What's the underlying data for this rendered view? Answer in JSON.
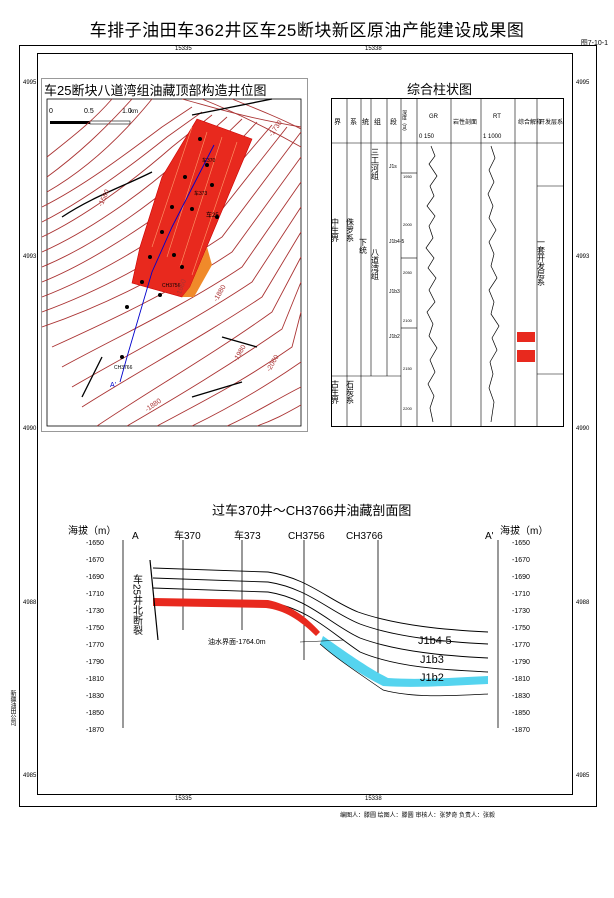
{
  "title": "车排子油田车362井区车25断块新区原油产能建设成果图",
  "figure_no": "图7-10-1",
  "grid": {
    "top_x": [
      "15335",
      "15338"
    ],
    "bottom_x": [
      "15335",
      "15338"
    ],
    "left_y": [
      "4995",
      "4993",
      "4990",
      "4988",
      "4985"
    ],
    "right_y": [
      "4995",
      "4993",
      "4990",
      "4988",
      "4985"
    ]
  },
  "map_panel": {
    "title": "车25断块八道湾组油藏顶部构造井位图",
    "scale_labels": [
      "0",
      "0.5",
      "1.0",
      "km"
    ],
    "wells": [
      "车370",
      "车373",
      "车25",
      "CH3756",
      "CH3766"
    ],
    "contours": [
      "-1580",
      "-1730",
      "-1660",
      "-1880",
      "-1980",
      "-2060",
      "-1880"
    ],
    "section_line_label": "A'"
  },
  "column_panel": {
    "title": "综合柱状图",
    "headers": [
      "界",
      "系",
      "统",
      "组",
      "段",
      "深度（m）",
      "GR",
      "岩性剖面",
      "RT",
      "综合解释",
      "开发层系"
    ],
    "gr_range": "0    150",
    "rt_range": "1  1000",
    "era_mesozoic": "中生界",
    "era_paleozoic": "古生界",
    "system_jurassic": "侏罗系",
    "system_carboniferous": "石炭系",
    "series_lower": "下统",
    "formation_sangonghe": "三工河组",
    "formation_badaowan": "八道湾组",
    "members": [
      "J1s",
      "J1b4-5",
      "J1b3",
      "J1b2"
    ],
    "depths": [
      "1950",
      "2000",
      "2050",
      "2100",
      "2150",
      "2200"
    ],
    "layer_series": "一套开发层系"
  },
  "section_panel": {
    "title": "过车370井～CH3766井油藏剖面图",
    "left_axis_title": "海拔（m）",
    "right_axis_title": "海拔（m）",
    "left_end": "A",
    "right_end": "A'",
    "wells": [
      "车370",
      "车373",
      "CH3756",
      "CH3766"
    ],
    "fault_label": "车25井北断裂",
    "owc_label": "油水界面-1764.0m",
    "layer_labels": [
      "J1b4-5",
      "J1b3",
      "J1b2"
    ],
    "elevations": [
      "-1650",
      "-1670",
      "-1690",
      "-1710",
      "-1730",
      "-1750",
      "-1770",
      "-1790",
      "-1810",
      "-1830",
      "-1850",
      "-1870"
    ]
  },
  "signers": "编图人：滕圆    绘图人：滕圆    审核人：张梦奇    负责人：张毅",
  "left_margin_note": "新疆油田公司"
}
